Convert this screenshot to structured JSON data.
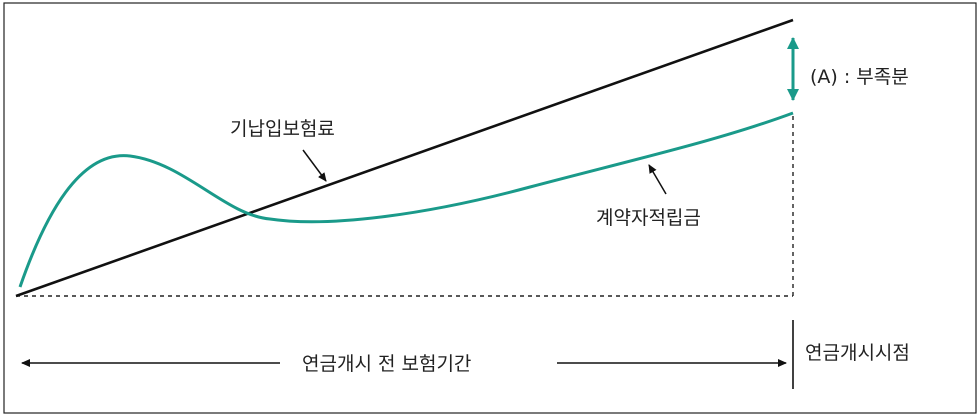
{
  "labels": {
    "paid_premium": "기납입보험료",
    "contractor_reserve": "계약자적립금",
    "shortfall": "(A) : 부족분",
    "pre_annuity_period": "연금개시 전 보험기간",
    "annuity_start": "연금개시시점"
  },
  "colors": {
    "frame": "#222222",
    "premium_line": "#1a1a1a",
    "reserve_curve": "#1a9a8a",
    "shortfall_arrow": "#1a9a8a",
    "text": "#222222"
  },
  "chart_data": {
    "type": "line",
    "series": [
      {
        "name": "기납입보험료",
        "shape": "straight-increasing"
      },
      {
        "name": "계약자적립금",
        "shape": "rise-dip-rise"
      }
    ]
  }
}
